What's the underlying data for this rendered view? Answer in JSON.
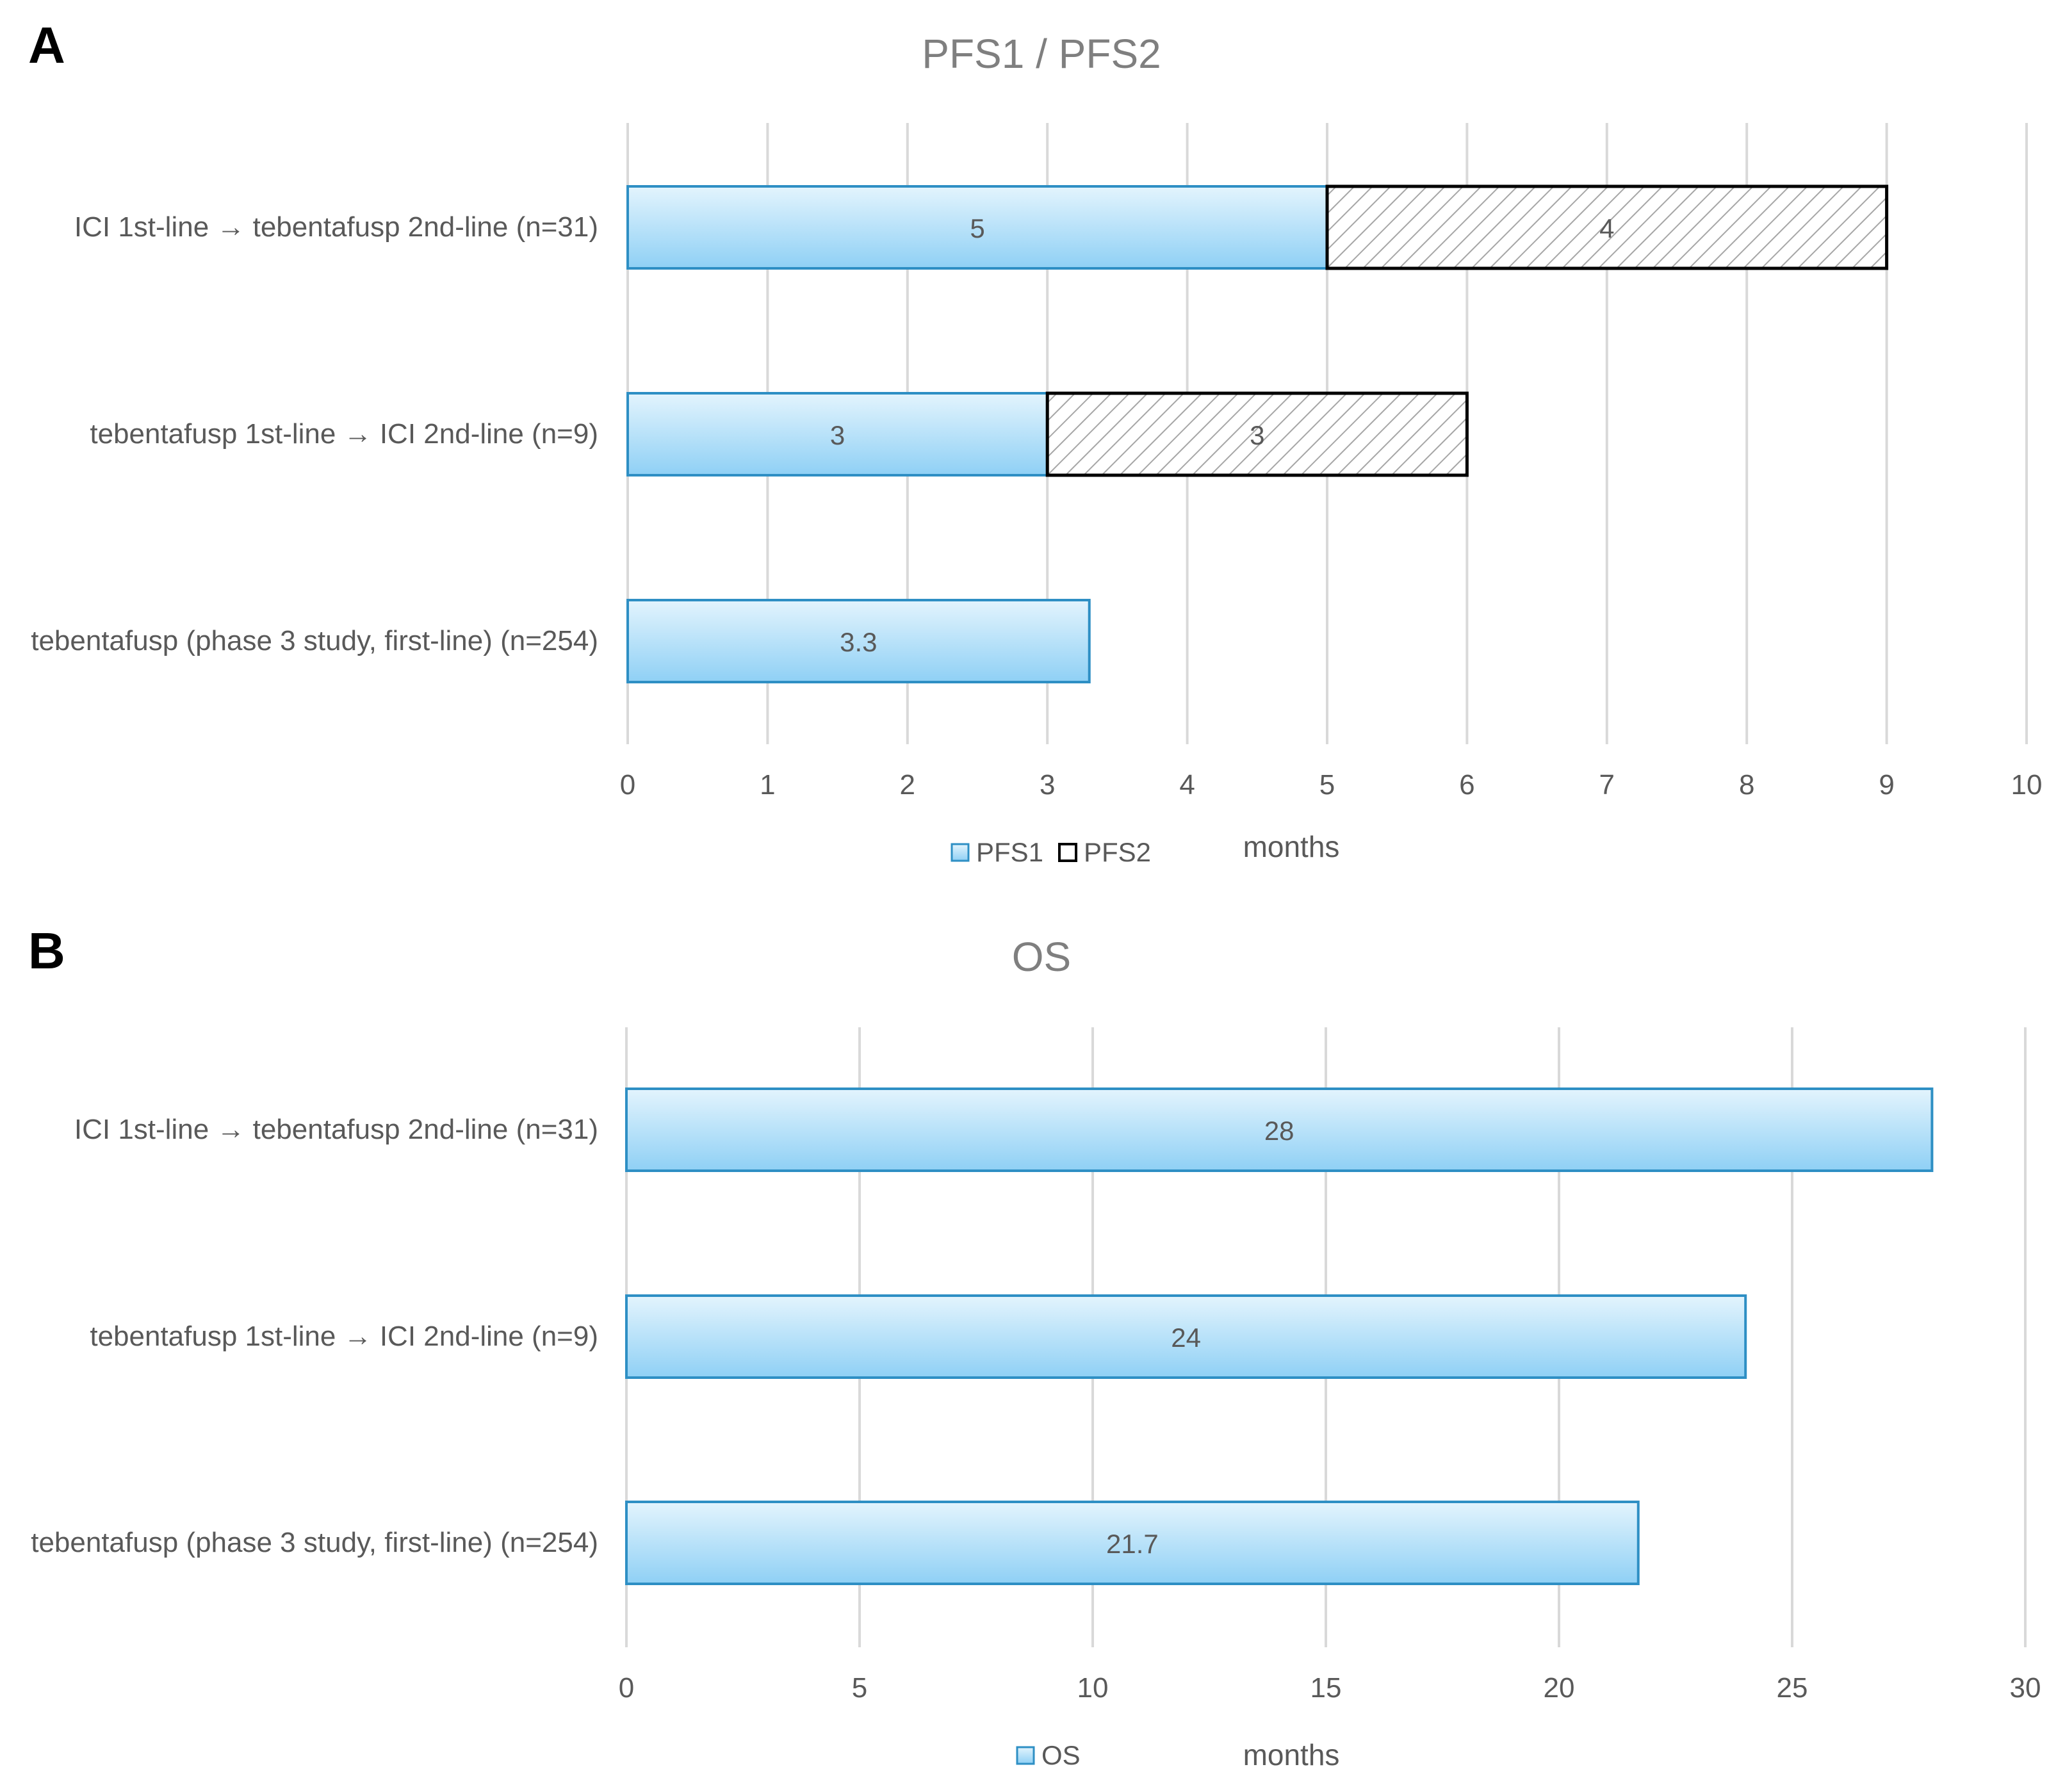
{
  "figure": {
    "panels": [
      "A",
      "B"
    ]
  },
  "colors": {
    "bar_fill_top": "#e3f4fd",
    "bar_fill_bottom": "#8fd0f5",
    "bar_stroke": "#2e8fc4",
    "hatch_line": "#a6a6a6",
    "hatch_stroke": "#000000",
    "grid": "#d9d9d9",
    "text": "#595959",
    "title": "#7f7f7f"
  },
  "chart_data": [
    {
      "panel": "A",
      "type": "bar",
      "orientation": "horizontal",
      "stacked": true,
      "title": "PFS1 / PFS2",
      "xlabel": "months",
      "categories": [
        "ICI 1st-line → tebentafusp 2nd-line (n=31)",
        "tebentafusp 1st-line → ICI 2nd-line (n=9)",
        "tebentafusp (phase 3 study, first-line) (n=254)"
      ],
      "series": [
        {
          "name": "PFS1",
          "style": "solid-blue",
          "values": [
            5,
            3,
            3.3
          ],
          "labels": [
            "5",
            "3",
            "3.3"
          ]
        },
        {
          "name": "PFS2",
          "style": "hatched",
          "values": [
            4,
            3,
            null
          ],
          "labels": [
            "4",
            "3",
            ""
          ]
        }
      ],
      "xlim": [
        0,
        10
      ],
      "xticks": [
        0,
        1,
        2,
        3,
        4,
        5,
        6,
        7,
        8,
        9,
        10
      ],
      "grid": "vertical",
      "legend": "bottom-center"
    },
    {
      "panel": "B",
      "type": "bar",
      "orientation": "horizontal",
      "stacked": false,
      "title": "OS",
      "xlabel": "months",
      "categories": [
        "ICI 1st-line → tebentafusp 2nd-line (n=31)",
        "tebentafusp 1st-line → ICI 2nd-line (n=9)",
        "tebentafusp (phase 3 study, first-line) (n=254)"
      ],
      "series": [
        {
          "name": "OS",
          "style": "solid-blue",
          "values": [
            28,
            24,
            21.7
          ],
          "labels": [
            "28",
            "24",
            "21.7"
          ]
        }
      ],
      "xlim": [
        0,
        30
      ],
      "xticks": [
        0,
        5,
        10,
        15,
        20,
        25,
        30
      ],
      "grid": "vertical",
      "legend": "bottom-center"
    }
  ]
}
